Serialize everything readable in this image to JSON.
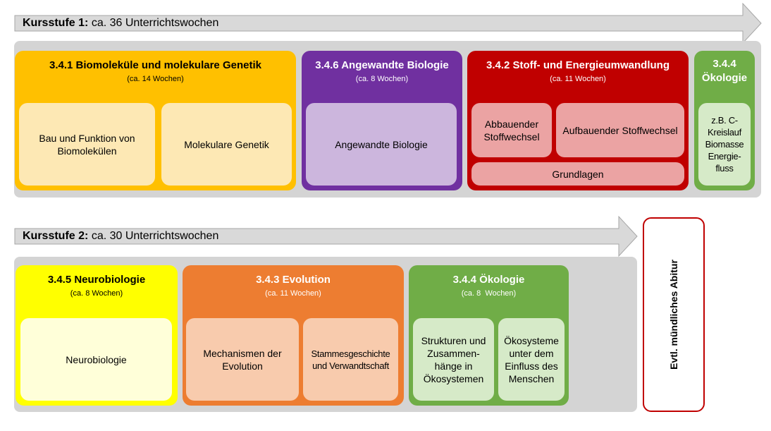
{
  "stage1": {
    "label_bold": "Kursstufe 1:",
    "label_rest": "ca. 36 Unterrichtswochen",
    "blocks": [
      {
        "title": "3.4.1 Biomoleküle und molekulare Genetik",
        "subtitle": "(ca. 14 Wochen)",
        "color": "#ffc000",
        "items": [
          "Bau und Funktion von Biomolekülen",
          "Molekulare Genetik"
        ],
        "item_color": "#fde8b4"
      },
      {
        "title": "3.4.6 Angewandte Biologie",
        "subtitle": "(ca. 8 Wochen)",
        "color": "#7030a0",
        "items": [
          "Angewandte Biologie"
        ],
        "item_color": "#ccb6dd"
      },
      {
        "title": "3.4.2 Stoff- und Energieumwandlung",
        "subtitle": "(ca. 11 Wochen)",
        "color": "#c00000",
        "items": [
          "Abbauender Stoffwechsel",
          "Aufbauender Stoffwechsel",
          "Grundlagen"
        ],
        "item_color": "#eba3a3"
      },
      {
        "title_line1": "3.4.4",
        "title_line2": "Ökologie",
        "color": "#70ad47",
        "items": [
          "z.B. C-Kreislauf Biomasse Energie-fluss"
        ],
        "item_color": "#d6eac8"
      }
    ]
  },
  "stage2": {
    "label_bold": "Kursstufe 2:",
    "label_rest": "ca. 30 Unterrichtswochen",
    "blocks": [
      {
        "title": "3.4.5 Neurobiologie",
        "subtitle": "(ca. 8 Wochen)",
        "color": "#ffff00",
        "items": [
          "Neurobiologie"
        ],
        "item_color": "#ffffd9"
      },
      {
        "title": "3.4.3 Evolution",
        "subtitle": "(ca. 11 Wochen)",
        "color": "#ed7d31",
        "items": [
          "Mechanismen der Evolution",
          "Stammesgeschichte und Verwandtschaft"
        ],
        "item_color": "#f8cbad"
      },
      {
        "title": "3.4.4 Ökologie",
        "subtitle": "(ca. 8  Wochen)",
        "color": "#70ad47",
        "items": [
          "Strukturen und Zusammen-hänge in Ökosystemen",
          "Ökosysteme unter dem Einfluss des Menschen"
        ],
        "item_color": "#d6eac8"
      }
    ]
  },
  "side": {
    "label": "Evtl. mündliches Abitur",
    "border_color": "#c00000"
  }
}
